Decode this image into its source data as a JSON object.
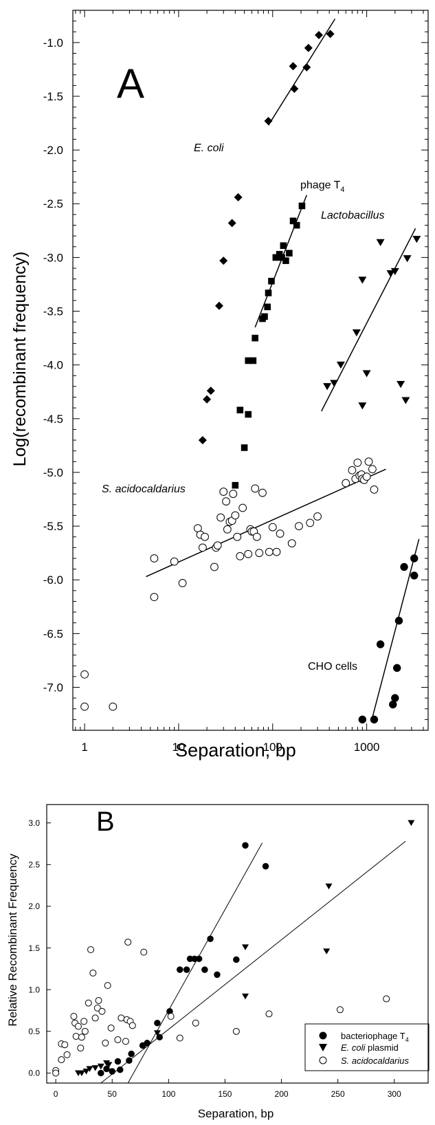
{
  "chart_data": [
    {
      "type": "scatter",
      "panel_label": "A",
      "xlabel": "Separation, bp",
      "ylabel": "Log(recombinant frequency)",
      "xscale": "log",
      "xlim": [
        0.75,
        4500
      ],
      "ylim": [
        -7.4,
        -0.7
      ],
      "xticks": [
        1,
        10,
        100,
        1000
      ],
      "xtick_labels": [
        "1",
        "10",
        "100",
        "1000"
      ],
      "yticks": [
        -1.0,
        -1.5,
        -2.0,
        -2.5,
        -3.0,
        -3.5,
        -4.0,
        -4.5,
        -5.0,
        -5.5,
        -6.0,
        -6.5,
        -7.0
      ],
      "ytick_labels": [
        "-1.0",
        "-1.5",
        "-2.0",
        "-2.5",
        "-3.0",
        "-3.5",
        "-4.0",
        "-4.5",
        "-5.0",
        "-5.5",
        "-6.0",
        "-6.5",
        "-7.0"
      ],
      "series": [
        {
          "name": "E. coli",
          "marker": "diamond",
          "points": [
            [
              18,
              -4.7
            ],
            [
              20,
              -4.32
            ],
            [
              22,
              -4.24
            ],
            [
              27,
              -3.45
            ],
            [
              30,
              -3.03
            ],
            [
              37,
              -2.68
            ],
            [
              43,
              -2.44
            ],
            [
              90,
              -1.73
            ],
            [
              165,
              -1.22
            ],
            [
              170,
              -1.43
            ],
            [
              230,
              -1.23
            ],
            [
              240,
              -1.05
            ],
            [
              310,
              -0.93
            ],
            [
              410,
              -0.92
            ]
          ],
          "fit": [
            [
              90,
              -1.77
            ],
            [
              460,
              -0.78
            ]
          ]
        },
        {
          "name": "phage T4",
          "marker": "square",
          "points": [
            [
              40,
              -5.12
            ],
            [
              45,
              -4.42
            ],
            [
              50,
              -4.77
            ],
            [
              55,
              -4.46
            ],
            [
              55,
              -3.96
            ],
            [
              62,
              -3.96
            ],
            [
              65,
              -3.75
            ],
            [
              78,
              -3.57
            ],
            [
              82,
              -3.55
            ],
            [
              88,
              -3.46
            ],
            [
              90,
              -3.33
            ],
            [
              97,
              -3.22
            ],
            [
              108,
              -3.0
            ],
            [
              118,
              -2.97
            ],
            [
              125,
              -3.0
            ],
            [
              130,
              -2.89
            ],
            [
              138,
              -3.03
            ],
            [
              150,
              -2.96
            ],
            [
              165,
              -2.66
            ],
            [
              180,
              -2.7
            ],
            [
              205,
              -2.52
            ]
          ],
          "fit": [
            [
              65,
              -3.65
            ],
            [
              230,
              -2.42
            ]
          ]
        },
        {
          "name": "Lactobacillus",
          "marker": "triangle-down",
          "points": [
            [
              380,
              -4.2
            ],
            [
              450,
              -4.17
            ],
            [
              530,
              -4.0
            ],
            [
              780,
              -3.7
            ],
            [
              900,
              -3.21
            ],
            [
              1000,
              -4.08
            ],
            [
              900,
              -4.38
            ],
            [
              1400,
              -2.86
            ],
            [
              1800,
              -3.15
            ],
            [
              2000,
              -3.13
            ],
            [
              2300,
              -4.18
            ],
            [
              2600,
              -4.33
            ],
            [
              2700,
              -3.01
            ],
            [
              3400,
              -2.83
            ]
          ],
          "fit": [
            [
              330,
              -4.43
            ],
            [
              3300,
              -2.73
            ]
          ]
        },
        {
          "name": "S. acidocaldarius",
          "marker": "open-circle",
          "points": [
            [
              1,
              -6.88
            ],
            [
              1,
              -7.18
            ],
            [
              2,
              -7.18
            ],
            [
              5.5,
              -5.8
            ],
            [
              5.5,
              -6.16
            ],
            [
              9,
              -5.83
            ],
            [
              11,
              -6.03
            ],
            [
              16,
              -5.52
            ],
            [
              17,
              -5.58
            ],
            [
              18,
              -5.7
            ],
            [
              19,
              -5.6
            ],
            [
              24,
              -5.88
            ],
            [
              25,
              -5.7
            ],
            [
              26,
              -5.68
            ],
            [
              28,
              -5.42
            ],
            [
              30,
              -5.18
            ],
            [
              32,
              -5.27
            ],
            [
              33,
              -5.53
            ],
            [
              35,
              -5.46
            ],
            [
              37,
              -5.45
            ],
            [
              38,
              -5.2
            ],
            [
              40,
              -5.4
            ],
            [
              42,
              -5.6
            ],
            [
              45,
              -5.78
            ],
            [
              48,
              -5.33
            ],
            [
              55,
              -5.76
            ],
            [
              58,
              -5.53
            ],
            [
              60,
              -5.55
            ],
            [
              63,
              -5.55
            ],
            [
              65,
              -5.15
            ],
            [
              68,
              -5.6
            ],
            [
              72,
              -5.75
            ],
            [
              78,
              -5.19
            ],
            [
              92,
              -5.74
            ],
            [
              100,
              -5.51
            ],
            [
              110,
              -5.74
            ],
            [
              120,
              -5.57
            ],
            [
              160,
              -5.66
            ],
            [
              190,
              -5.5
            ],
            [
              250,
              -5.47
            ],
            [
              300,
              -5.41
            ],
            [
              600,
              -5.1
            ],
            [
              700,
              -4.98
            ],
            [
              760,
              -5.06
            ],
            [
              800,
              -4.91
            ],
            [
              840,
              -5.03
            ],
            [
              880,
              -5.02
            ],
            [
              900,
              -5.06
            ],
            [
              940,
              -5.07
            ],
            [
              1000,
              -5.04
            ],
            [
              1050,
              -4.9
            ],
            [
              1150,
              -4.97
            ],
            [
              1200,
              -5.16
            ]
          ],
          "fit": [
            [
              4.5,
              -5.97
            ],
            [
              1600,
              -4.97
            ]
          ]
        },
        {
          "name": "CHO cells",
          "marker": "filled-circle",
          "points": [
            [
              900,
              -7.3
            ],
            [
              1200,
              -7.3
            ],
            [
              1400,
              -6.6
            ],
            [
              1900,
              -7.16
            ],
            [
              2000,
              -7.1
            ],
            [
              2100,
              -6.82
            ],
            [
              2200,
              -6.38
            ],
            [
              2500,
              -5.88
            ],
            [
              3200,
              -5.8
            ],
            [
              3200,
              -5.96
            ]
          ],
          "fit": [
            [
              1150,
              -7.28
            ],
            [
              3600,
              -5.62
            ]
          ]
        }
      ],
      "annotations": [
        "A",
        "E. coli",
        "phage T4",
        "Lactobacillus",
        "S. acidocaldarius",
        "CHO cells"
      ]
    },
    {
      "type": "scatter",
      "panel_label": "B",
      "xlabel": "Separation, bp",
      "ylabel": "Relative Recombinant Frequency",
      "xlim": [
        -8,
        330
      ],
      "ylim": [
        -0.12,
        3.22
      ],
      "xticks": [
        0,
        50,
        100,
        150,
        200,
        250,
        300
      ],
      "xtick_labels": [
        "0",
        "50",
        "100",
        "150",
        "200",
        "250",
        "300"
      ],
      "yticks": [
        0.0,
        0.5,
        1.0,
        1.5,
        2.0,
        2.5,
        3.0
      ],
      "ytick_labels": [
        "0.0",
        "0.5",
        "1.0",
        "1.5",
        "2.0",
        "2.5",
        "3.0"
      ],
      "legend_position": "bottom-right",
      "legend": [
        "bacteriophage T4",
        "E. coli plasmid",
        "S. acidocaldarius"
      ],
      "series": [
        {
          "name": "bacteriophage T4",
          "marker": "filled-circle",
          "points": [
            [
              40,
              0.0
            ],
            [
              45,
              0.05
            ],
            [
              50,
              0.02
            ],
            [
              55,
              0.14
            ],
            [
              57,
              0.04
            ],
            [
              65,
              0.15
            ],
            [
              67,
              0.23
            ],
            [
              77,
              0.33
            ],
            [
              81,
              0.36
            ],
            [
              90,
              0.6
            ],
            [
              92,
              0.43
            ],
            [
              101,
              0.74
            ],
            [
              110,
              1.24
            ],
            [
              116,
              1.24
            ],
            [
              119,
              1.37
            ],
            [
              123,
              1.37
            ],
            [
              127,
              1.37
            ],
            [
              132,
              1.24
            ],
            [
              137,
              1.61
            ],
            [
              143,
              1.18
            ],
            [
              160,
              1.36
            ],
            [
              168,
              2.73
            ],
            [
              186,
              2.48
            ]
          ],
          "fit": [
            [
              64,
              -0.12
            ],
            [
              183,
              2.76
            ]
          ]
        },
        {
          "name": "E. coli plasmid",
          "marker": "triangle-down",
          "points": [
            [
              20,
              0.0
            ],
            [
              23,
              0.0
            ],
            [
              27,
              0.02
            ],
            [
              30,
              0.05
            ],
            [
              35,
              0.06
            ],
            [
              40,
              0.08
            ],
            [
              45,
              0.12
            ],
            [
              47,
              0.1
            ],
            [
              90,
              0.48
            ],
            [
              168,
              1.51
            ],
            [
              168,
              0.92
            ],
            [
              240,
              1.46
            ],
            [
              242,
              2.24
            ],
            [
              315,
              3.0
            ]
          ],
          "fit": [
            [
              40,
              -0.12
            ],
            [
              310,
              2.78
            ]
          ]
        },
        {
          "name": "S. acidocaldarius",
          "marker": "open-circle",
          "points": [
            [
              0,
              0.03
            ],
            [
              0,
              0.0
            ],
            [
              5,
              0.35
            ],
            [
              5,
              0.16
            ],
            [
              8,
              0.34
            ],
            [
              10,
              0.22
            ],
            [
              16,
              0.68
            ],
            [
              17,
              0.6
            ],
            [
              18,
              0.44
            ],
            [
              20,
              0.56
            ],
            [
              22,
              0.3
            ],
            [
              23,
              0.43
            ],
            [
              25,
              0.62
            ],
            [
              26,
              0.5
            ],
            [
              29,
              0.84
            ],
            [
              31,
              1.48
            ],
            [
              33,
              1.2
            ],
            [
              35,
              0.66
            ],
            [
              37,
              0.78
            ],
            [
              38,
              0.87
            ],
            [
              41,
              0.74
            ],
            [
              44,
              0.36
            ],
            [
              46,
              1.05
            ],
            [
              49,
              0.54
            ],
            [
              55,
              0.4
            ],
            [
              58,
              0.66
            ],
            [
              62,
              0.38
            ],
            [
              63,
              0.64
            ],
            [
              64,
              1.57
            ],
            [
              66,
              0.62
            ],
            [
              68,
              0.57
            ],
            [
              78,
              1.45
            ],
            [
              102,
              0.68
            ],
            [
              110,
              0.42
            ],
            [
              124,
              0.6
            ],
            [
              160,
              0.5
            ],
            [
              189,
              0.71
            ],
            [
              252,
              0.76
            ],
            [
              293,
              0.89
            ]
          ],
          "fit": null
        }
      ],
      "annotations": [
        "B"
      ]
    }
  ]
}
